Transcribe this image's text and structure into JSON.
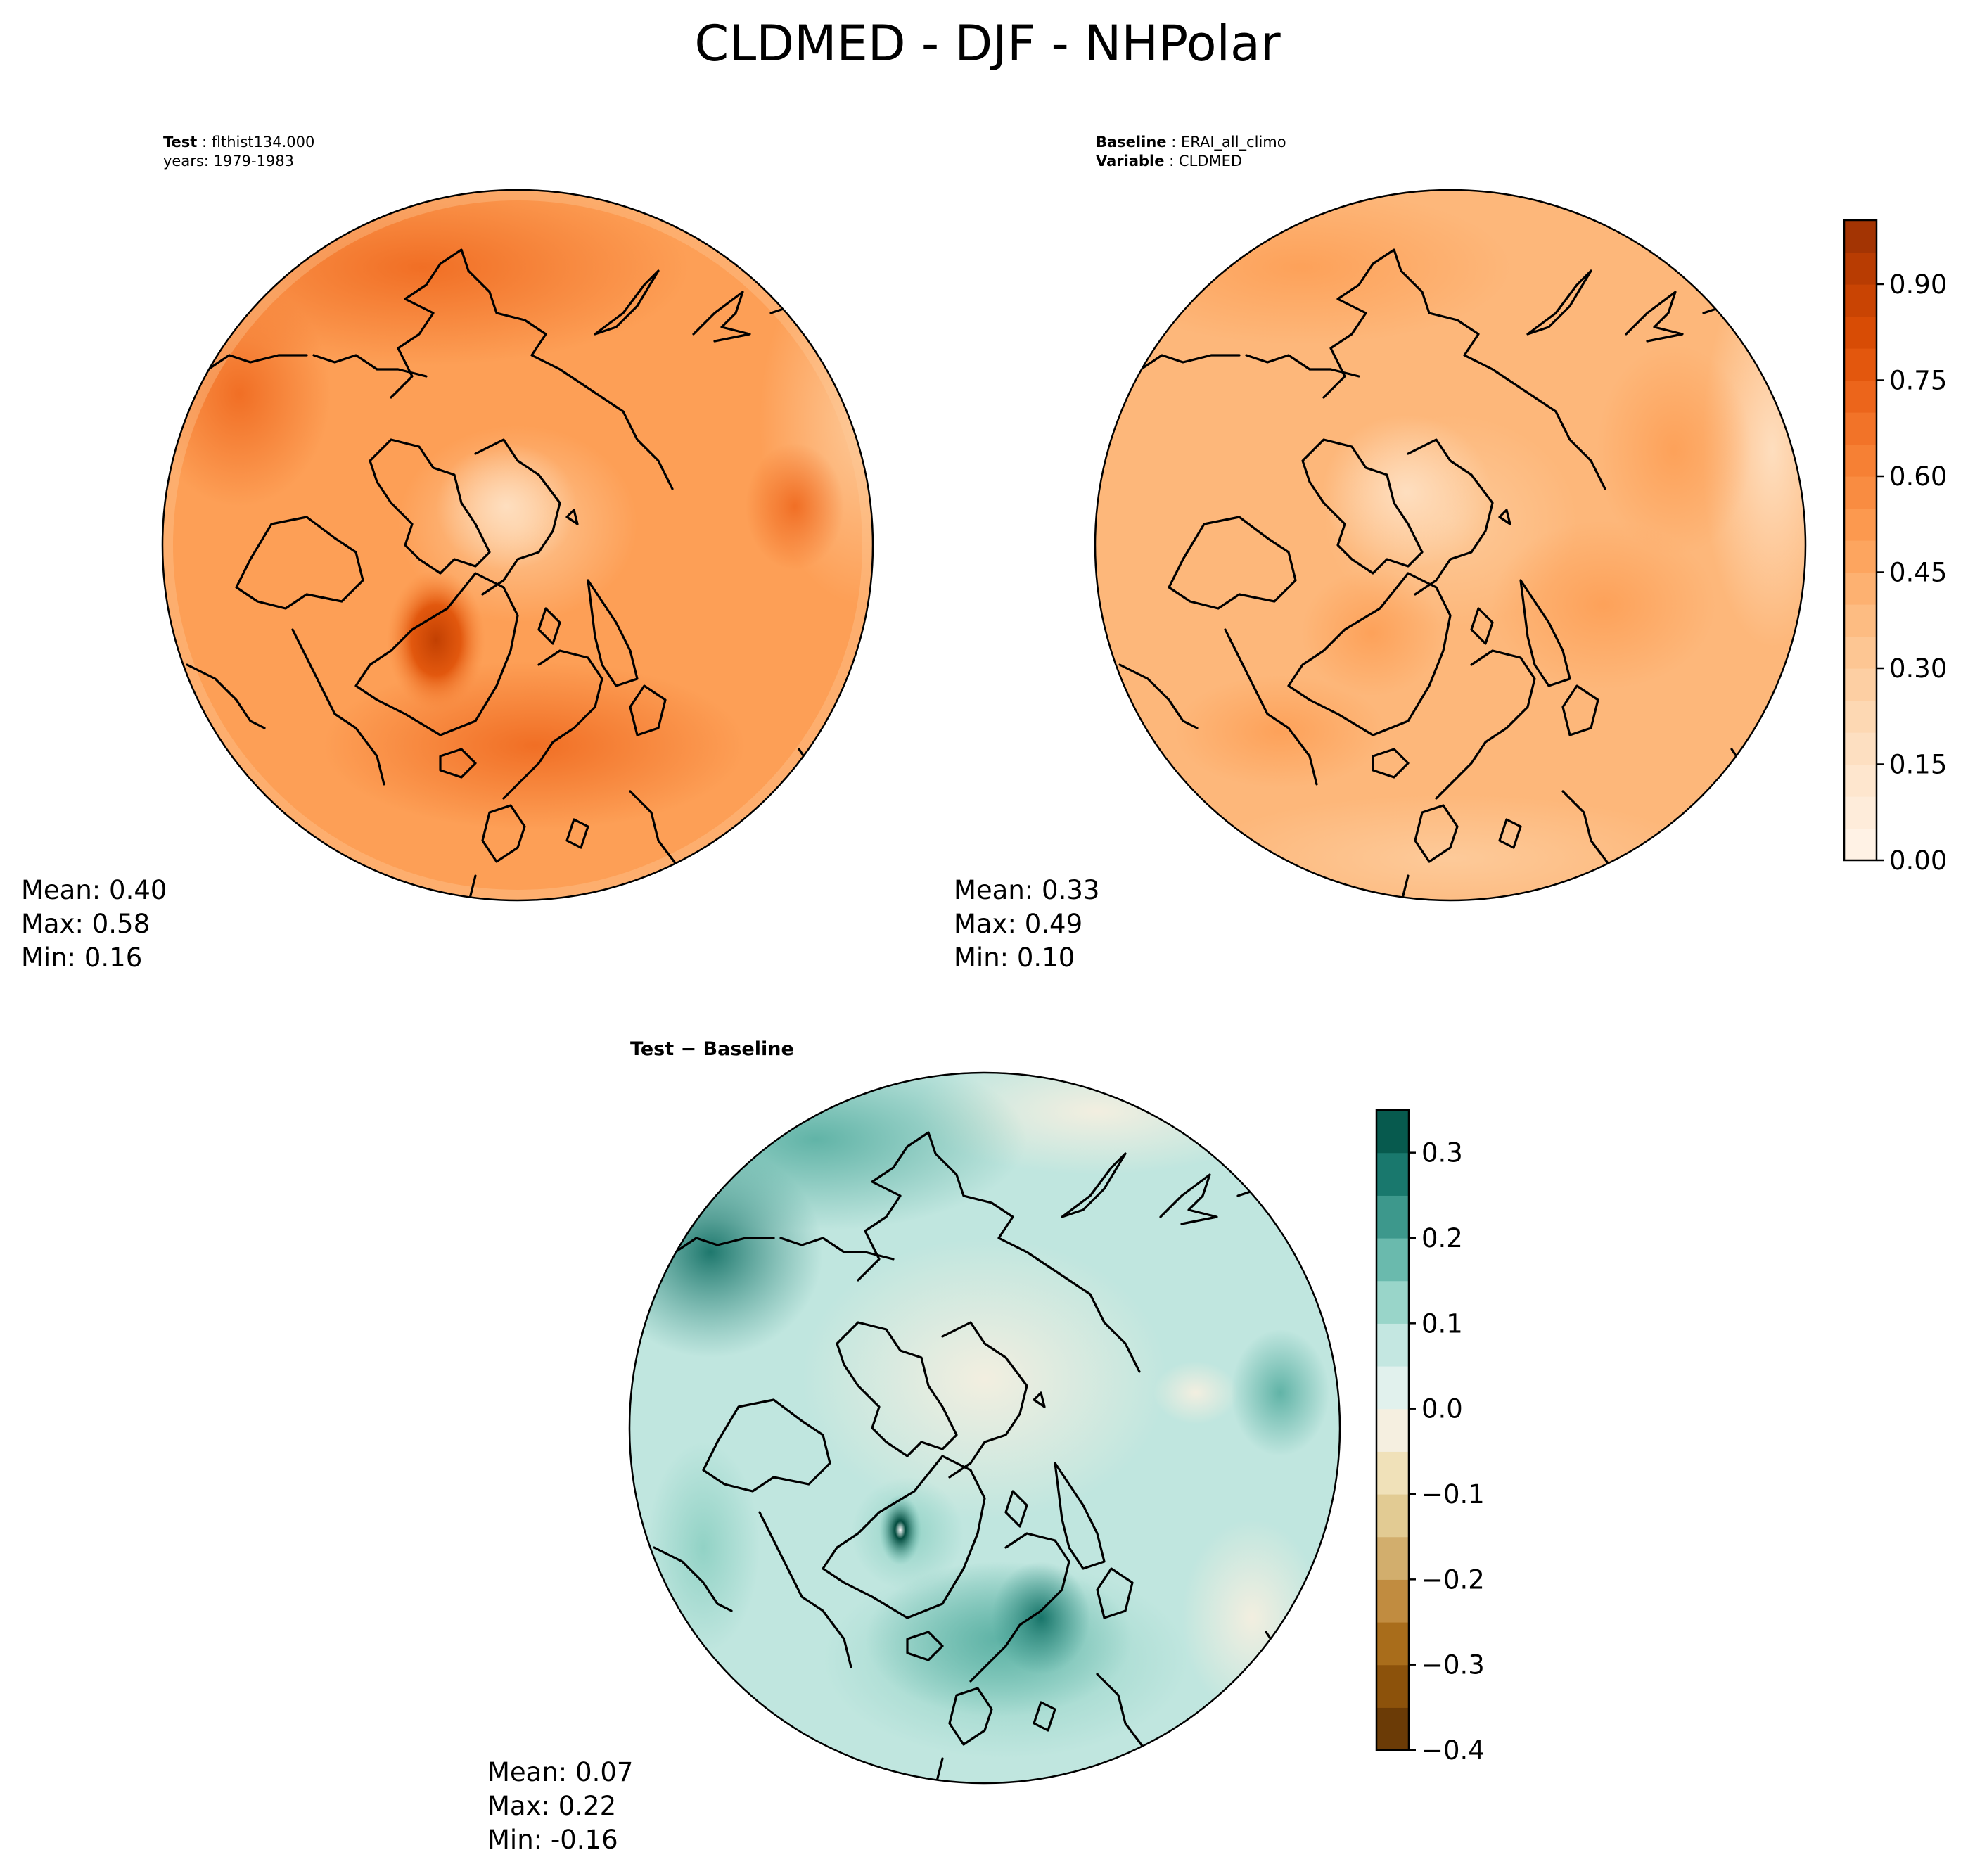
{
  "chart_data": {
    "title": "CLDMED - DJF - NHPolar",
    "type": "polar_contour_maps",
    "panels": [
      {
        "id": "test",
        "header": [
          {
            "label": "Test",
            "value": "flthist134.000"
          },
          {
            "label": "",
            "value": "years: 1979-1983"
          }
        ],
        "stats": {
          "mean": "Mean:  0.40",
          "max": "Max:  0.58",
          "min": "Min:  0.16"
        },
        "values": {
          "mean": 0.4,
          "max": 0.58,
          "min": 0.16
        }
      },
      {
        "id": "baseline",
        "header": [
          {
            "label": "Baseline",
            "value": "ERAI_all_climo"
          },
          {
            "label": "Variable",
            "value": "CLDMED"
          }
        ],
        "stats": {
          "mean": "Mean:  0.33",
          "max": "Max:  0.49",
          "min": "Min:  0.10"
        },
        "values": {
          "mean": 0.33,
          "max": 0.49,
          "min": 0.1
        }
      },
      {
        "id": "difference",
        "header": [
          {
            "label": "Test − Baseline",
            "value": ""
          }
        ],
        "stats": {
          "mean": "Mean:  0.07",
          "max": "Max:  0.22",
          "min": "Min: -0.16"
        },
        "values": {
          "mean": 0.07,
          "max": 0.22,
          "min": -0.16
        }
      }
    ],
    "colorbars": [
      {
        "id": "main",
        "colormap": "Oranges",
        "range": [
          0.0,
          1.0
        ],
        "levels": 20,
        "ticks": [
          0.0,
          0.15,
          0.3,
          0.45,
          0.6,
          0.75,
          0.9
        ],
        "tick_labels": [
          "0.00",
          "0.15",
          "0.30",
          "0.45",
          "0.60",
          "0.75",
          "0.90"
        ],
        "colors": [
          "#fff5eb",
          "#fee9d4",
          "#fddcbb",
          "#fdcb9b",
          "#fdb77a",
          "#fd9f56",
          "#f8863a",
          "#f06c22",
          "#df5006",
          "#c24002",
          "#983003"
        ]
      },
      {
        "id": "diff",
        "colormap": "BrBG",
        "range": [
          -0.4,
          0.35
        ],
        "levels": 15,
        "ticks": [
          -0.4,
          -0.3,
          -0.2,
          -0.1,
          0.0,
          0.1,
          0.2,
          0.3
        ],
        "tick_labels": [
          "−0.4",
          "−0.3",
          "−0.2",
          "−0.1",
          "0.0",
          "0.1",
          "0.2",
          "0.3"
        ],
        "colors": [
          "#5a3004",
          "#7f4809",
          "#a0620f",
          "#bc8233",
          "#cfa865",
          "#e0c88e",
          "#f0e0b6",
          "#f5efe0",
          "#e0f1ee",
          "#c0e6df",
          "#8fd1c4",
          "#5cb1a4",
          "#2d8b80",
          "#0c6b60",
          "#024b3e"
        ]
      }
    ]
  }
}
